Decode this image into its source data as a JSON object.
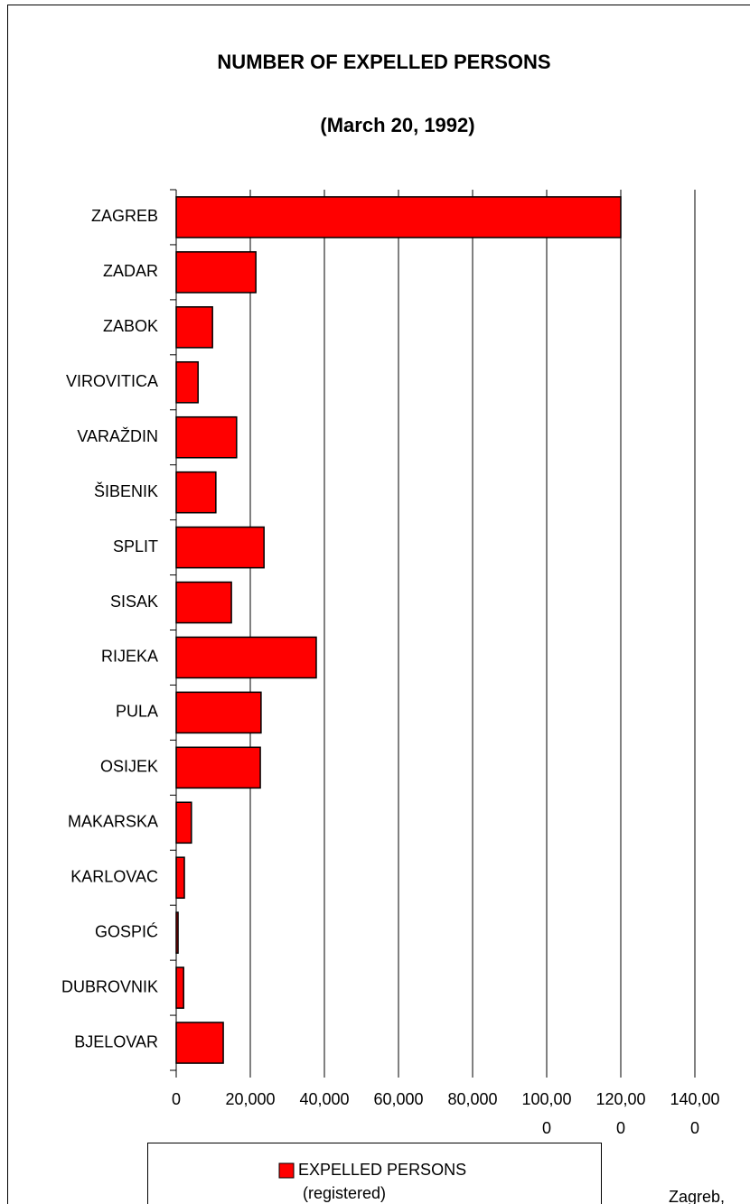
{
  "chart_data": {
    "type": "barh",
    "title": "NUMBER OF EXPELLED PERSONS",
    "subtitle": "(March 20, 1992)",
    "categories": [
      "ZAGREB",
      "ZADAR",
      "ZABOK",
      "VIROVITICA",
      "VARAŽDIN",
      "ŠIBENIK",
      "SPLIT",
      "SISAK",
      "RIJEKA",
      "PULA",
      "OSIJEK",
      "MAKARSKA",
      "KARLOVAC",
      "GOSPIĆ",
      "DUBROVNIK",
      "BJELOVAR"
    ],
    "series": [
      {
        "name": "EXPELLED PERSONS (registered)",
        "color": "#ff0000",
        "values": [
          120000,
          21500,
          9800,
          5900,
          16300,
          10700,
          23700,
          14900,
          37800,
          22900,
          22700,
          4100,
          2200,
          500,
          2000,
          12700
        ]
      }
    ],
    "xlim": [
      0,
      140000
    ],
    "xticks": [
      0,
      {
        "value": 20000,
        "label": "20,000"
      },
      {
        "value": 40000,
        "label": "40,000"
      },
      {
        "value": 60000,
        "label": "60,000"
      },
      {
        "value": 80000,
        "label": "80,000"
      },
      {
        "value": 100000,
        "label": "100,000"
      },
      {
        "value": 120000,
        "label": "120,000"
      },
      {
        "value": 140000,
        "label": "140,000"
      }
    ],
    "grid": true,
    "annotation": "Zagreb,"
  }
}
